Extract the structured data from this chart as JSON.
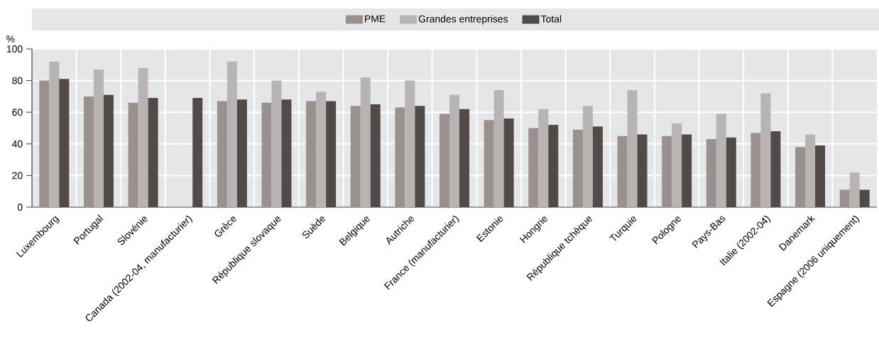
{
  "chart_data": {
    "type": "bar",
    "ylabel": "%",
    "categories": [
      "Luxembourg",
      "Portugal",
      "Slovénie",
      "Canada (2002-04, manufacturier)",
      "Grèce",
      "République slovaque",
      "Suède",
      "Belgique",
      "Autriche",
      "France (manufacturier)",
      "Estonie",
      "Hongrie",
      "République tchèque",
      "Turquie",
      "Pologne",
      "Pays-Bas",
      "Italie (2002-04)",
      "Danemark",
      "Espagne (2006 uniquement)"
    ],
    "series": [
      {
        "name": "PME",
        "color": "#9a908d",
        "values": [
          80,
          70,
          66,
          null,
          67,
          66,
          67,
          64,
          63,
          59,
          55,
          50,
          49,
          45,
          45,
          43,
          47,
          38,
          11
        ]
      },
      {
        "name": "Grandes entreprises",
        "color": "#b9b4b4",
        "values": [
          92,
          87,
          88,
          null,
          92,
          80,
          73,
          82,
          80,
          71,
          74,
          62,
          64,
          74,
          53,
          59,
          72,
          46,
          22
        ]
      },
      {
        "name": "Total",
        "color": "#524a47",
        "values": [
          81,
          71,
          69,
          69,
          68,
          68,
          67,
          65,
          64,
          62,
          56,
          52,
          51,
          46,
          46,
          44,
          48,
          39,
          11
        ]
      }
    ],
    "ylim": [
      0,
      100
    ],
    "yticks": [
      0,
      20,
      40,
      60,
      80,
      100
    ],
    "grid": true,
    "legend": "top"
  }
}
